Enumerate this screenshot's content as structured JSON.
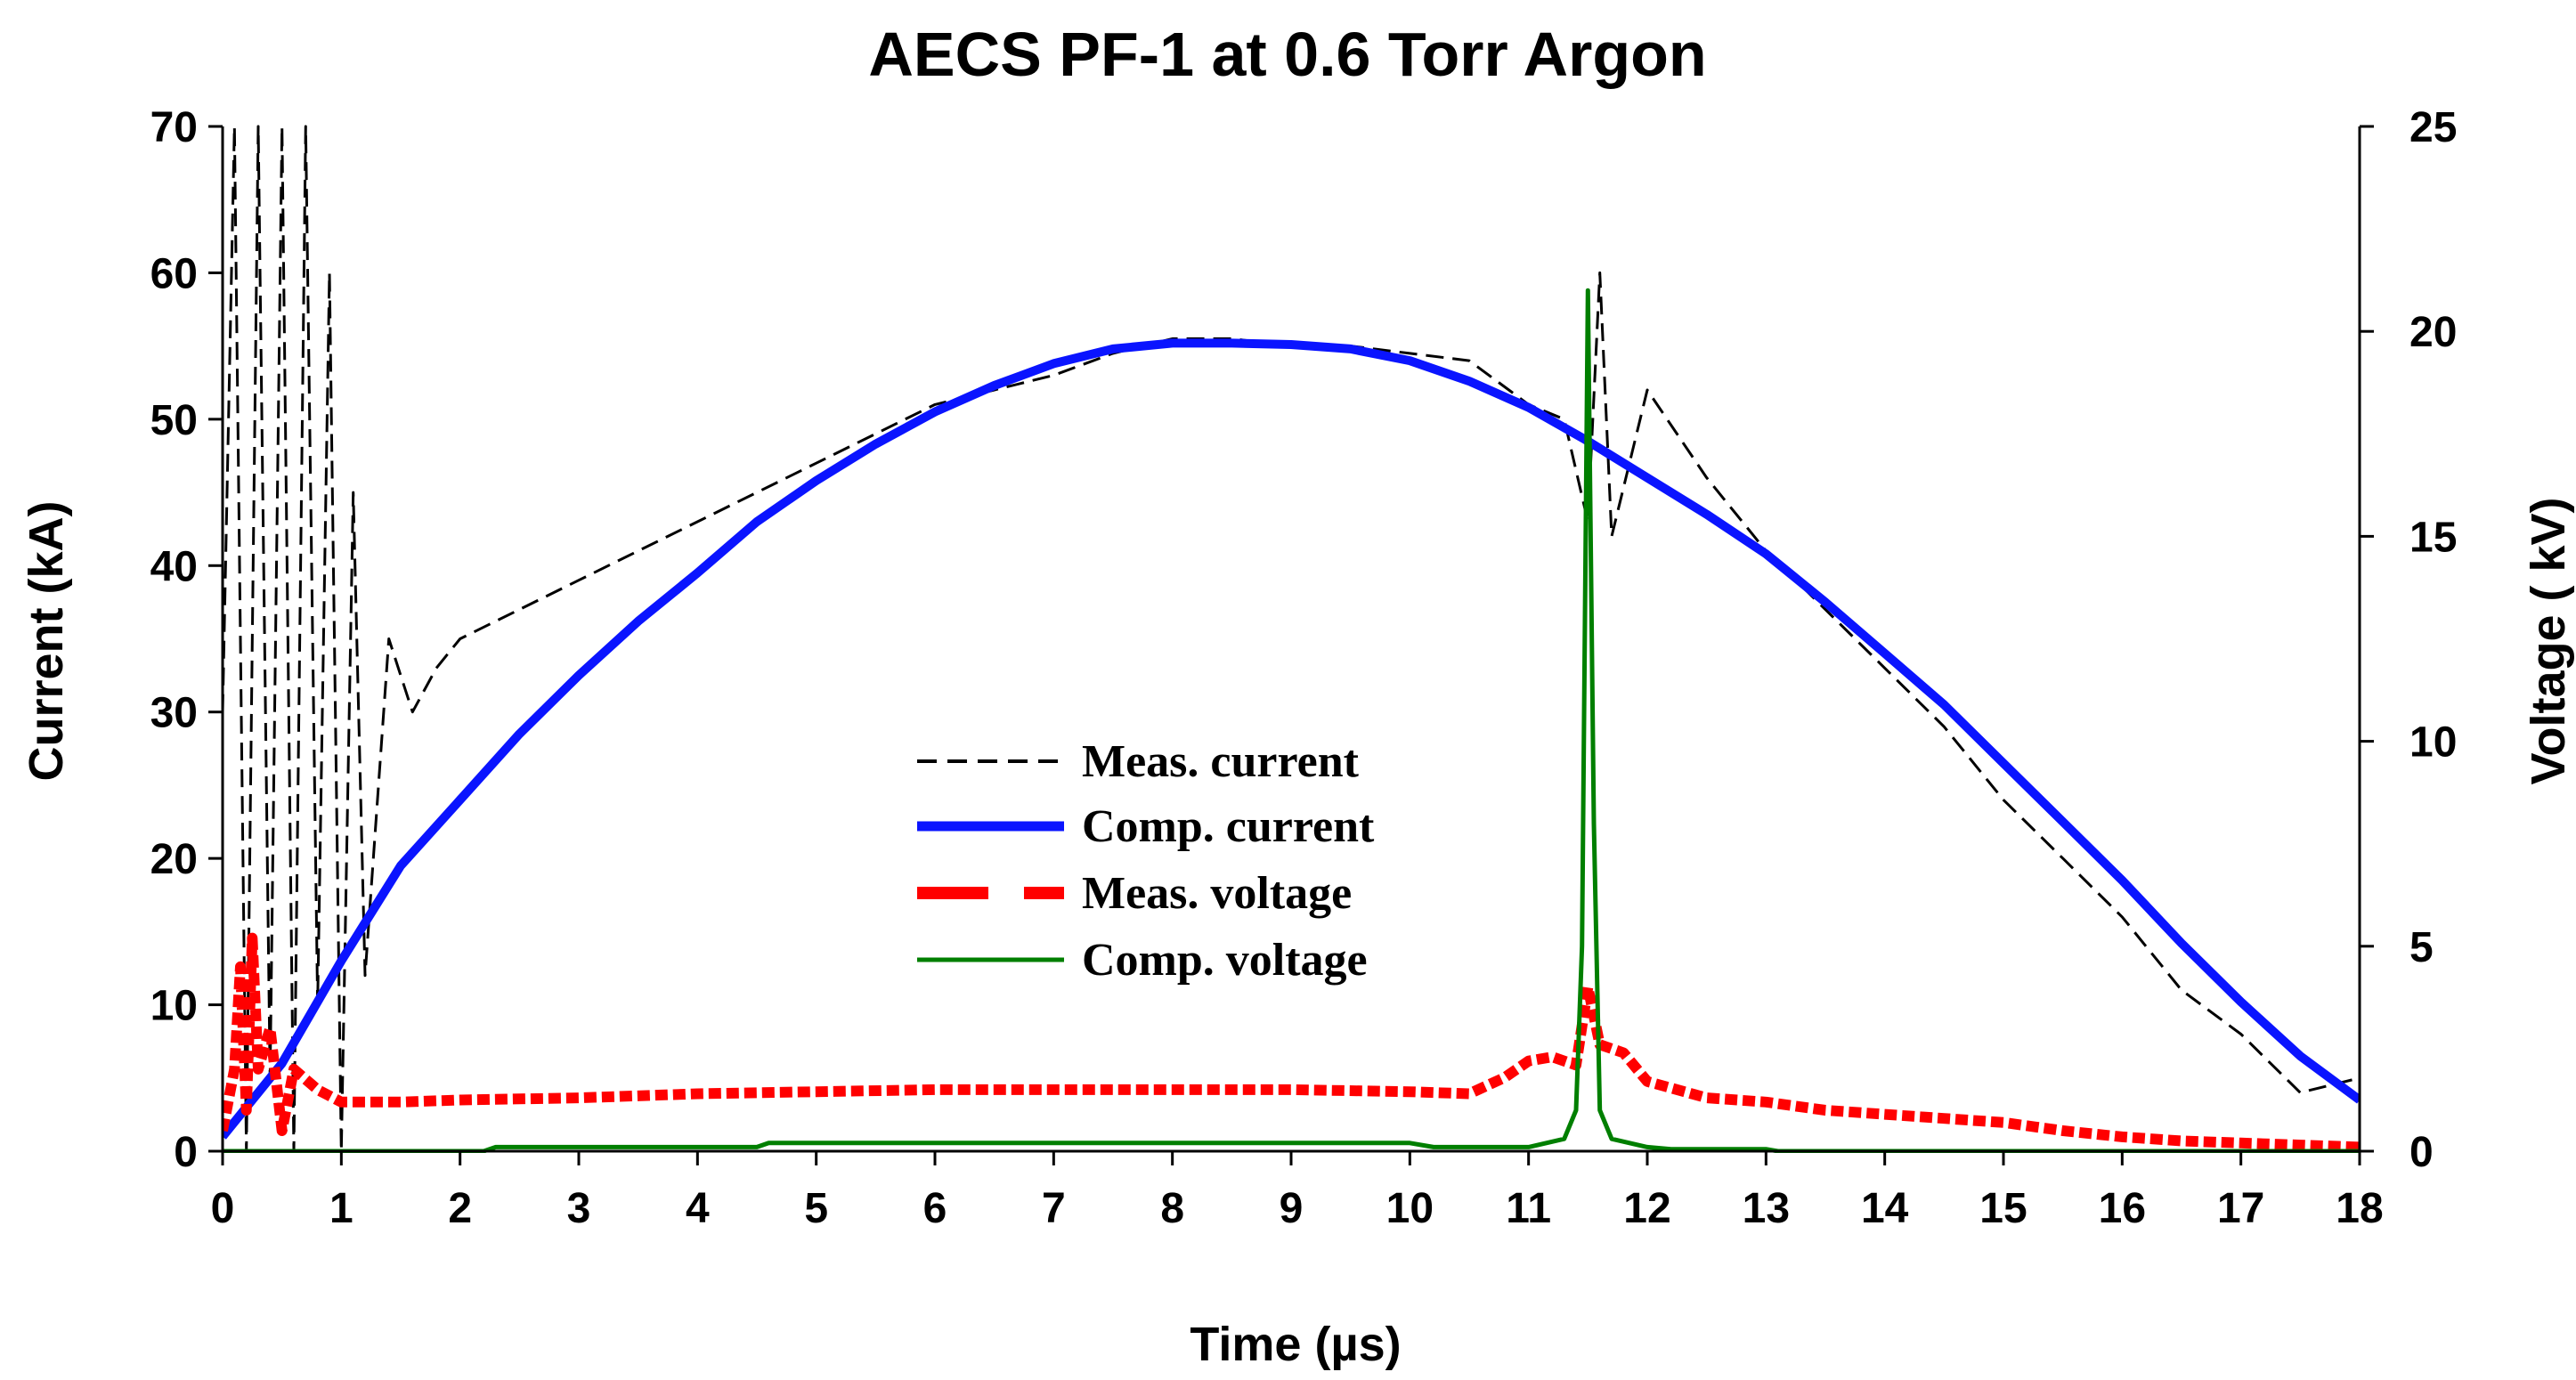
{
  "chart_data": {
    "type": "line",
    "title": "AECS PF-1 at 0.6 Torr Argon",
    "xlabel": "Time (µs)",
    "ylabel": "Current (kA)",
    "y2label": "Voltage ( kV)",
    "xlim": [
      0,
      18
    ],
    "ylim": [
      0,
      70
    ],
    "y2lim": [
      0,
      25
    ],
    "xticks": [
      "0",
      "1",
      "2",
      "3",
      "4",
      "5",
      "6",
      "7",
      "8",
      "9",
      "10",
      "11",
      "12",
      "13",
      "14",
      "15",
      "16",
      "17",
      "18"
    ],
    "yticks": [
      "0",
      "10",
      "20",
      "30",
      "40",
      "50",
      "60",
      "70"
    ],
    "y2ticks": [
      "0",
      "5",
      "10",
      "15",
      "20",
      "25"
    ],
    "legend_position": "center",
    "series": [
      {
        "name": "Meas. current",
        "axis": "left",
        "color": "#000000",
        "style": "dashed",
        "x": [
          0,
          0.1,
          0.2,
          0.3,
          0.4,
          0.5,
          0.6,
          0.7,
          0.8,
          0.9,
          1.0,
          1.1,
          1.2,
          1.4,
          1.6,
          1.8,
          2.0,
          2.5,
          3.0,
          3.5,
          4.0,
          4.5,
          5.0,
          5.5,
          6.0,
          6.5,
          7.0,
          7.5,
          8.0,
          8.5,
          9.0,
          9.5,
          10.0,
          10.5,
          11.0,
          11.3,
          11.5,
          11.6,
          11.7,
          12.0,
          12.5,
          13.0,
          13.5,
          14.0,
          14.5,
          15.0,
          15.5,
          16.0,
          16.5,
          17.0,
          17.5,
          18.0
        ],
        "values": [
          30,
          70,
          0,
          70,
          5,
          70,
          0,
          70,
          10,
          60,
          0,
          45,
          12,
          35,
          30,
          33,
          35,
          37,
          39,
          41,
          43,
          45,
          47,
          49,
          51,
          52,
          53,
          54.5,
          55.5,
          55.5,
          55,
          55,
          54.5,
          54,
          51,
          50,
          43,
          60,
          42,
          52,
          46,
          41,
          37,
          33,
          29,
          24,
          20,
          16,
          11,
          8,
          4,
          5
        ]
      },
      {
        "name": "Comp. current",
        "axis": "left",
        "color": "#0a14ff",
        "style": "solid",
        "x": [
          0,
          0.5,
          1,
          1.5,
          2,
          2.5,
          3,
          3.5,
          4,
          4.5,
          5,
          5.5,
          6,
          6.5,
          7,
          7.5,
          8,
          8.5,
          9,
          9.5,
          10,
          10.5,
          11,
          11.5,
          12,
          12.5,
          13,
          13.5,
          14,
          14.5,
          15,
          15.5,
          16,
          16.5,
          17,
          17.5,
          18
        ],
        "values": [
          1,
          6,
          13,
          19.5,
          24,
          28.5,
          32.5,
          36.2,
          39.5,
          43,
          45.8,
          48.3,
          50.5,
          52.3,
          53.8,
          54.8,
          55.2,
          55.2,
          55.1,
          54.8,
          54,
          52.6,
          50.8,
          48.5,
          46,
          43.5,
          40.8,
          37.5,
          34,
          30.5,
          26.5,
          22.5,
          18.5,
          14.2,
          10.2,
          6.5,
          3.5
        ]
      },
      {
        "name": "Meas. voltage",
        "axis": "right",
        "color": "#ff0000",
        "style": "thick-dashed",
        "x": [
          0,
          0.1,
          0.15,
          0.2,
          0.25,
          0.3,
          0.4,
          0.5,
          0.6,
          0.8,
          1.0,
          1.5,
          2,
          3,
          4,
          5,
          6,
          7,
          8,
          9,
          10,
          10.5,
          10.8,
          11,
          11.2,
          11.4,
          11.5,
          11.6,
          11.8,
          12,
          12.5,
          13,
          13.5,
          14,
          14.5,
          15,
          15.5,
          16,
          16.5,
          17,
          17.5,
          18
        ],
        "values": [
          0.5,
          2,
          4.5,
          1,
          5.2,
          2,
          3,
          0.5,
          2,
          1.5,
          1.2,
          1.2,
          1.25,
          1.3,
          1.4,
          1.45,
          1.5,
          1.5,
          1.5,
          1.5,
          1.45,
          1.4,
          1.8,
          2.2,
          2.3,
          2.1,
          4,
          2.6,
          2.4,
          1.7,
          1.3,
          1.2,
          1.0,
          0.9,
          0.8,
          0.7,
          0.5,
          0.35,
          0.25,
          0.2,
          0.15,
          0.1
        ]
      },
      {
        "name": "Comp. voltage",
        "axis": "right",
        "color": "#007f00",
        "style": "solid",
        "x": [
          0,
          2.2,
          2.3,
          4.5,
          4.6,
          10,
          10.2,
          11,
          11.3,
          11.4,
          11.45,
          11.5,
          11.55,
          11.6,
          11.7,
          12,
          12.2,
          13,
          13.1,
          18
        ],
        "values": [
          0,
          0,
          0.1,
          0.1,
          0.2,
          0.2,
          0.1,
          0.1,
          0.3,
          1,
          5,
          21,
          8,
          1,
          0.3,
          0.1,
          0.05,
          0.05,
          0,
          0
        ]
      }
    ]
  }
}
